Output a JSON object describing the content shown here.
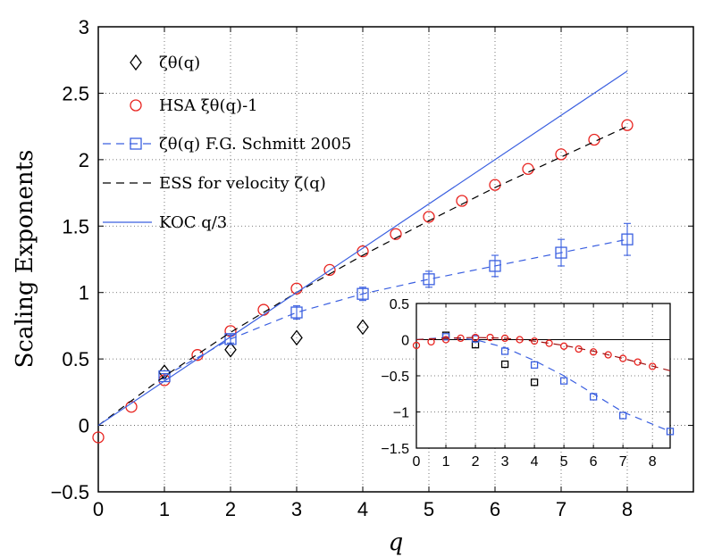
{
  "chart_data": [
    {
      "type": "scatter",
      "xlabel": "q",
      "ylabel": "Scaling Exponents",
      "xlim": [
        0,
        9
      ],
      "ylim": [
        -0.5,
        3
      ],
      "xticks": [
        "0",
        "1",
        "2",
        "3",
        "4",
        "5",
        "6",
        "7",
        "8"
      ],
      "yticks": [
        "−0.5",
        "0",
        "0.5",
        "1",
        "1.5",
        "2",
        "2.5",
        "3"
      ],
      "grid": true,
      "legend_position": "top-left",
      "series": [
        {
          "name": "zeta_theta",
          "label": "ζθ(q)",
          "marker": "diamond",
          "color": "#000000",
          "x": [
            1,
            2,
            3,
            4
          ],
          "y": [
            0.4,
            0.57,
            0.66,
            0.74
          ]
        },
        {
          "name": "hsa",
          "label": "HSA ξθ(q)-1",
          "marker": "circle",
          "color": "#e8231f",
          "x": [
            0,
            0.5,
            1,
            1.5,
            2,
            2.5,
            3,
            3.5,
            4,
            4.5,
            5,
            5.5,
            6,
            6.5,
            7,
            7.5,
            8
          ],
          "y": [
            -0.09,
            0.14,
            0.34,
            0.53,
            0.71,
            0.87,
            1.03,
            1.17,
            1.31,
            1.44,
            1.57,
            1.69,
            1.81,
            1.93,
            2.04,
            2.15,
            2.26
          ]
        },
        {
          "name": "schmitt",
          "label": "ζθ(q) F.G. Schmitt 2005",
          "marker": "square",
          "line": "dashed",
          "color": "#3a5fe0",
          "x": [
            1,
            2,
            3,
            4,
            5,
            6,
            7,
            8
          ],
          "y": [
            0.37,
            0.65,
            0.85,
            0.99,
            1.1,
            1.2,
            1.3,
            1.4
          ],
          "yerr": [
            0.02,
            0.03,
            0.05,
            0.05,
            0.06,
            0.08,
            0.1,
            0.12
          ]
        },
        {
          "name": "ess",
          "label": "ESS for velocity ζ(q)",
          "line": "dashed",
          "color": "#000000",
          "x": [
            0,
            1,
            2,
            3,
            4,
            5,
            6,
            7,
            8
          ],
          "y": [
            0,
            0.37,
            0.7,
            1.0,
            1.28,
            1.54,
            1.79,
            2.02,
            2.25
          ]
        },
        {
          "name": "koc",
          "label": "KOC q/3",
          "line": "solid",
          "color": "#3a5fe0",
          "x": [
            0,
            8
          ],
          "y": [
            0,
            2.667
          ]
        }
      ]
    },
    {
      "type": "scatter",
      "inset": true,
      "xlim": [
        0,
        8.6
      ],
      "ylim": [
        -1.5,
        0.5
      ],
      "xticks": [
        "0",
        "1",
        "2",
        "3",
        "4",
        "5",
        "6",
        "7",
        "8"
      ],
      "yticks": [
        "0.5",
        "0",
        "−0.5",
        "−1",
        "−1.5"
      ],
      "zero_line": 0,
      "series": [
        {
          "name": "inset_black",
          "marker": "square",
          "color": "#000000",
          "x": [
            1,
            2,
            3,
            4
          ],
          "y": [
            0.06,
            -0.07,
            -0.34,
            -0.59
          ]
        },
        {
          "name": "inset_blue",
          "marker": "square",
          "color": "#3a5fe0",
          "x": [
            1,
            2,
            3,
            4,
            5,
            6,
            7,
            8.6
          ],
          "y": [
            0.04,
            0.01,
            -0.16,
            -0.35,
            -0.57,
            -0.79,
            -1.05,
            -1.27
          ]
        },
        {
          "name": "inset_blue_fit",
          "line": "dashed",
          "color": "#3a5fe0",
          "x": [
            0,
            1,
            2,
            3,
            4,
            5,
            6,
            7,
            8.6
          ],
          "y": [
            0.0,
            0.03,
            0.0,
            -0.11,
            -0.29,
            -0.5,
            -0.75,
            -1.0,
            -1.27
          ]
        },
        {
          "name": "inset_red",
          "marker": "circle",
          "color": "#e8231f",
          "x": [
            0,
            0.5,
            1,
            1.5,
            2,
            2.5,
            3,
            3.5,
            4,
            4.5,
            5,
            5.5,
            6,
            6.5,
            7,
            7.5,
            8
          ],
          "y": [
            -0.08,
            -0.03,
            0.0,
            0.02,
            0.03,
            0.03,
            0.02,
            0.0,
            -0.02,
            -0.05,
            -0.09,
            -0.13,
            -0.17,
            -0.21,
            -0.26,
            -0.31,
            -0.37
          ]
        },
        {
          "name": "inset_red_fit",
          "line": "dashed",
          "color": "#a01010",
          "x": [
            0,
            1,
            2,
            3,
            4,
            5,
            6,
            7,
            8.6
          ],
          "y": [
            0.0,
            0.02,
            0.03,
            0.02,
            -0.02,
            -0.08,
            -0.16,
            -0.26,
            -0.43
          ]
        }
      ]
    }
  ]
}
